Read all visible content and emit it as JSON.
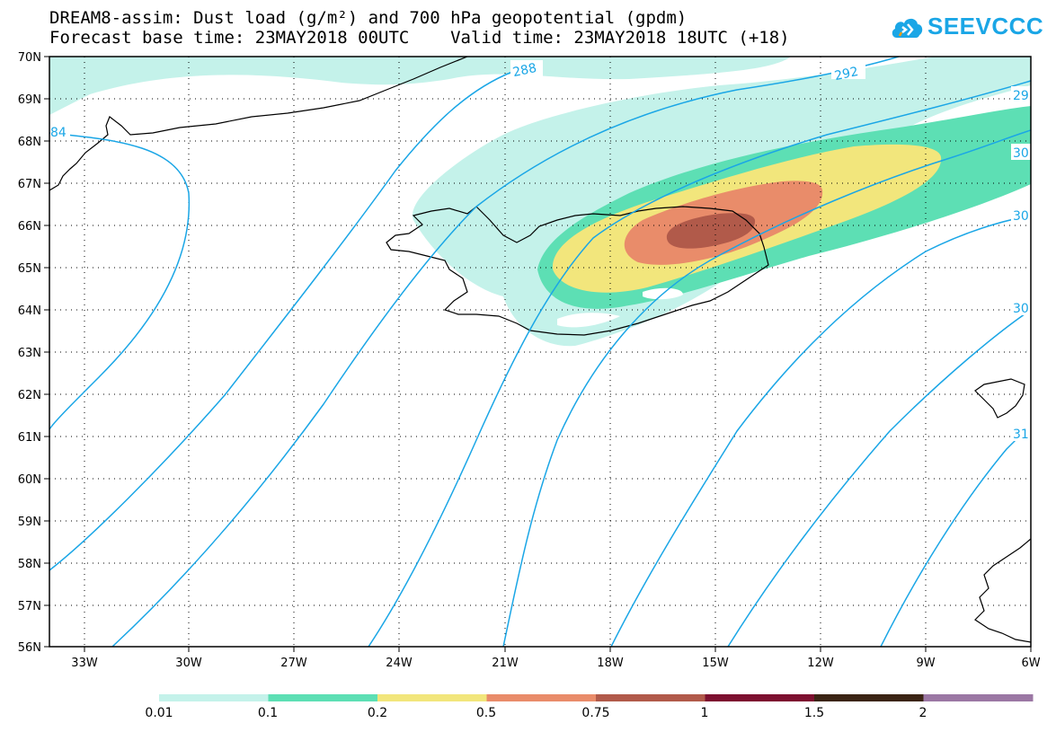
{
  "title_line1": "DREAM8-assim: Dust load (g/m²) and 700 hPa geopotential (gpdm)",
  "title_line2": "Forecast base time: 23MAY2018 00UTC    Valid time: 23MAY2018 18UTC (+18)",
  "logo_text": "SEEVCCC",
  "logo_icon": "cloud-icon",
  "lat_labels": [
    "70N",
    "69N",
    "68N",
    "67N",
    "66N",
    "65N",
    "64N",
    "63N",
    "62N",
    "61N",
    "60N",
    "59N",
    "58N",
    "57N",
    "56N"
  ],
  "lon_labels": [
    "33W",
    "30W",
    "27W",
    "24W",
    "21W",
    "18W",
    "15W",
    "12W",
    "9W",
    "6W"
  ],
  "contour_labels": [
    "84",
    "288",
    "292",
    "29",
    "30",
    "30",
    "30",
    "31"
  ],
  "colorbar": {
    "labels": [
      "0.01",
      "0.1",
      "0.2",
      "0.5",
      "0.75",
      "1",
      "1.5",
      "2"
    ],
    "colors": [
      "#c4f2ea",
      "#5ddfb4",
      "#f2e67c",
      "#e98c6a",
      "#b15a4a",
      "#7d1030",
      "#3b2414",
      "#9b77a4"
    ]
  },
  "colors": {
    "contour": "#1aa6e6",
    "dust_0_01": "#c4f2ea",
    "dust_0_1": "#5ddfb4",
    "dust_0_2": "#f2e67c",
    "dust_0_5": "#e98c6a",
    "dust_0_75": "#b15a4a"
  }
}
